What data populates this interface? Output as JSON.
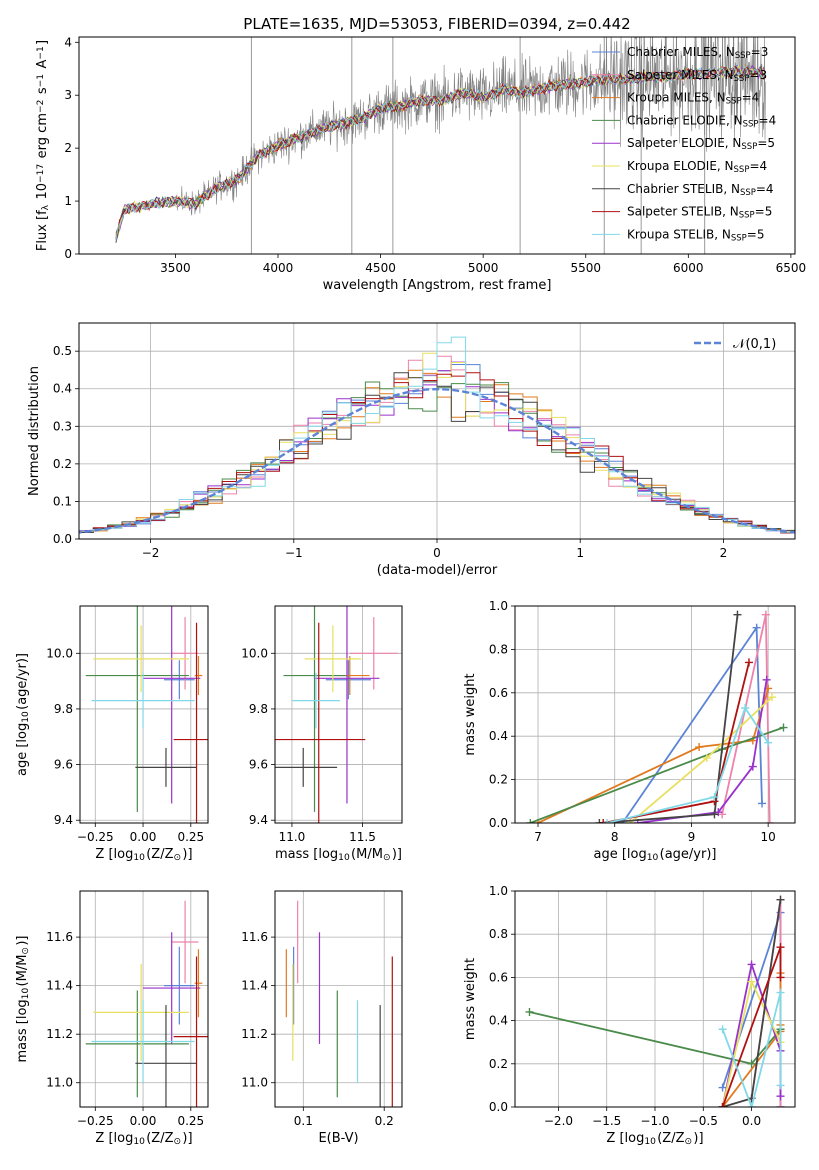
{
  "figure_title": "PLATE=1635, MJD=53053, FIBERID=0394, z=0.442",
  "colors": {
    "Chabrier MILES": "#5b84d6",
    "Salpeter MILES": "#ee82aa",
    "Kroupa MILES": "#e07a1f",
    "Chabrier ELODIE": "#4a8a4a",
    "Salpeter ELODIE": "#9932cc",
    "Kroupa ELODIE": "#e8e060",
    "Chabrier STELIB": "#444444",
    "Salpeter STELIB": "#b01010",
    "Kroupa STELIB": "#80d8e8",
    "gaussian": "#5b84d6",
    "data": "#808080"
  },
  "chart_data": [
    {
      "id": "spectrum",
      "type": "line",
      "xlabel": "wavelength [Angstrom, rest frame]",
      "ylabel": "Flux [f$_\\lambda$ 10$^{-17}$ erg cm$^{-2}$ s$^{-1}$ A$^{-1}$]",
      "xlim": [
        3030,
        6520
      ],
      "ylim": [
        0,
        4.1
      ],
      "xticks": [
        3500,
        4000,
        4500,
        5000,
        5500,
        6000,
        6500
      ],
      "yticks": [
        0,
        1,
        2,
        3,
        4
      ],
      "legend_placement": "upper-right",
      "legend": [
        {
          "sub": "Chabrier MILES",
          "n": "3"
        },
        {
          "sub": "Salpeter MILES",
          "n": "3"
        },
        {
          "sub": "Kroupa MILES",
          "n": "4"
        },
        {
          "sub": "Chabrier ELODIE",
          "n": "4"
        },
        {
          "sub": "Salpeter ELODIE",
          "n": "5"
        },
        {
          "sub": "Kroupa ELODIE",
          "n": "4"
        },
        {
          "sub": "Chabrier STELIB",
          "n": "4"
        },
        {
          "sub": "Salpeter STELIB",
          "n": "5"
        },
        {
          "sub": "Kroupa STELIB",
          "n": "5"
        }
      ],
      "legend_n_label": "N",
      "legend_n_sub": "SSP",
      "continuum": {
        "x": [
          3210,
          3250,
          3400,
          3480,
          3600,
          3700,
          3800,
          3900,
          4000,
          4100,
          4200,
          4300,
          4400,
          4500,
          4600,
          4700,
          4800,
          4900,
          5000,
          5100,
          5200,
          5300,
          5400,
          5500,
          5600,
          5700,
          5800,
          5900,
          6000,
          6100,
          6200,
          6300,
          6380
        ],
        "y": [
          0.3,
          0.85,
          0.95,
          1.0,
          0.95,
          1.25,
          1.4,
          1.85,
          2.05,
          2.2,
          2.35,
          2.45,
          2.55,
          2.75,
          2.8,
          2.9,
          2.9,
          3.05,
          2.95,
          3.1,
          3.05,
          3.15,
          3.2,
          3.25,
          3.3,
          3.3,
          3.35,
          3.35,
          3.4,
          3.4,
          3.45,
          3.45,
          3.4
        ]
      },
      "spikes": [
        3870,
        4360,
        4560,
        5180,
        5590,
        5770,
        6080
      ]
    },
    {
      "id": "residuals",
      "type": "histogram",
      "xlabel": "(data-model)/error",
      "ylabel": "Normed distribution",
      "xlim": [
        -2.5,
        2.5
      ],
      "ylim": [
        0,
        0.575
      ],
      "xticks": [
        -2,
        -1,
        0,
        1,
        2
      ],
      "yticks": [
        0.0,
        0.1,
        0.2,
        0.3,
        0.4,
        0.5
      ],
      "grid": true,
      "legend_label": "$\\mathcal{N}(0,1)$",
      "legend_placement": "upper-right",
      "bin_width": 0.1
    },
    {
      "id": "age_vs_Z",
      "type": "errorbar",
      "xlabel": "Z [log$_{10}$(Z/Z$_\\odot$)]",
      "ylabel": "age  [log$_{10}$(age/yr)]",
      "xlim": [
        -0.33,
        0.34
      ],
      "ylim": [
        9.39,
        10.17
      ],
      "xticks": [
        -0.25,
        0.0,
        0.25
      ],
      "xticklabels": [
        "−0.25",
        "0.00",
        "0.25"
      ],
      "yticks": [
        9.4,
        9.6,
        9.8,
        10.0
      ],
      "yticklabels": [
        "9.4",
        "9.6",
        "9.8",
        "10.0"
      ],
      "grid": true
    },
    {
      "id": "age_vs_mass",
      "type": "errorbar",
      "xlabel": "mass [log$_{10}$(M/M$_\\odot$)]",
      "ylabel": "",
      "xlim": [
        10.88,
        11.78
      ],
      "ylim": [
        9.39,
        10.17
      ],
      "xticks": [
        11.0,
        11.5
      ],
      "xticklabels": [
        "11.0",
        "11.5"
      ],
      "yticks": [
        9.4,
        9.6,
        9.8,
        10.0
      ],
      "yticklabels": [
        "9.4",
        "9.6",
        "9.8",
        "10.0"
      ],
      "grid": true
    },
    {
      "id": "weight_vs_age",
      "type": "line",
      "xlabel": "age  [log$_{10}$(age/yr)]",
      "ylabel": "mass weight",
      "xlim": [
        6.7,
        10.35
      ],
      "ylim": [
        0,
        1.0
      ],
      "xticks": [
        7,
        8,
        9,
        10
      ],
      "xticklabels": [
        "7",
        "8",
        "9",
        "10"
      ],
      "yticks": [
        0,
        0.2,
        0.4,
        0.6,
        0.8,
        1.0
      ],
      "yticklabels": [
        "0.0",
        "0.2",
        "0.4",
        "0.6",
        "0.8",
        "1.0"
      ],
      "grid": true
    },
    {
      "id": "mass_vs_Z",
      "type": "errorbar",
      "xlabel": "Z [log$_{10}$(Z/Z$_\\odot$)]",
      "ylabel": "mass [log$_{10}$(M/M$_\\odot$)]",
      "xlim": [
        -0.33,
        0.34
      ],
      "ylim": [
        10.9,
        11.79
      ],
      "xticks": [
        -0.25,
        0.0,
        0.25
      ],
      "xticklabels": [
        "−0.25",
        "0.00",
        "0.25"
      ],
      "yticks": [
        11.0,
        11.2,
        11.4,
        11.6
      ],
      "yticklabels": [
        "11.0",
        "11.2",
        "11.4",
        "11.6"
      ],
      "grid": true
    },
    {
      "id": "mass_vs_EBV",
      "type": "errorbar",
      "xlabel": "E(B-V)",
      "ylabel": "",
      "xlim": [
        0.065,
        0.222
      ],
      "ylim": [
        10.9,
        11.79
      ],
      "xticks": [
        0.1,
        0.2
      ],
      "xticklabels": [
        "0.1",
        "0.2"
      ],
      "yticks": [
        11.0,
        11.2,
        11.4,
        11.6
      ],
      "yticklabels": [
        "11.0",
        "11.2",
        "11.4",
        "11.6"
      ],
      "grid": true
    },
    {
      "id": "weight_vs_Z",
      "type": "line",
      "xlabel": "Z [log$_{10}$(Z/Z$_\\odot$)]",
      "ylabel": "mass weight",
      "xlim": [
        -2.45,
        0.45
      ],
      "ylim": [
        0,
        1.0
      ],
      "xticks": [
        -2.0,
        -1.5,
        -1.0,
        -0.5,
        0.0
      ],
      "xticklabels": [
        "−2.0",
        "−1.5",
        "−1.0",
        "−0.5",
        "0.0"
      ],
      "yticks": [
        0,
        0.2,
        0.4,
        0.6,
        0.8,
        1.0
      ],
      "yticklabels": [
        "0.0",
        "0.2",
        "0.4",
        "0.6",
        "0.8",
        "1.0"
      ],
      "grid": true
    }
  ],
  "models": [
    {
      "name": "Chabrier MILES",
      "age": 9.905,
      "age_err": 0.07,
      "Z": 0.19,
      "Z_err": 0.08,
      "mass": 11.4,
      "mass_err": 0.16,
      "ebv": 0.088,
      "ebv_err": 0.09,
      "ages": [
        8.1,
        9.85,
        9.92
      ],
      "weights": [
        0.0,
        0.9,
        0.09
      ],
      "Zs": [
        -0.3,
        0.3,
        0.3
      ],
      "zweights": [
        0.09,
        0.9,
        0.0
      ]
    },
    {
      "name": "Salpeter MILES",
      "age": 10.0,
      "age_err": 0.13,
      "Z": 0.22,
      "Z_err": 0.07,
      "mass": 11.58,
      "mass_err": 0.17,
      "ebv": 0.093,
      "ebv_err": 0.16,
      "ages": [
        9.4,
        9.97,
        10.02
      ],
      "weights": [
        0.04,
        0.96,
        0.0
      ],
      "Zs": [
        0.0,
        0.3,
        0.3
      ],
      "zweights": [
        0.04,
        0.96,
        0.0
      ]
    },
    {
      "name": "Kroupa MILES",
      "age": 9.92,
      "age_err": 0.07,
      "Z": 0.29,
      "Z_err": 0.02,
      "mass": 11.41,
      "mass_err": 0.14,
      "ebv": 0.079,
      "ebv_err": 0.15,
      "ages": [
        7.0,
        9.1,
        9.8,
        10.0
      ],
      "weights": [
        0.0,
        0.35,
        0.38,
        0.62
      ],
      "Zs": [
        -0.3,
        0.3,
        0.3,
        0.3
      ],
      "zweights": [
        0.0,
        0.35,
        0.38,
        0.62
      ]
    },
    {
      "name": "Chabrier ELODIE",
      "age": 9.92,
      "age_err": 0.49,
      "Z": -0.03,
      "Z_err": 0.27,
      "mass": 11.16,
      "mass_err": 0.22,
      "ebv": 0.142,
      "ebv_err": 0.26,
      "ages": [
        6.9,
        9.4,
        10.2
      ],
      "weights": [
        0.0,
        0.34,
        0.44
      ],
      "Zs": [
        -2.3,
        0.0,
        0.3
      ],
      "zweights": [
        0.44,
        0.2,
        0.36
      ]
    },
    {
      "name": "Salpeter ELODIE",
      "age": 9.91,
      "age_err": 0.45,
      "Z": 0.15,
      "Z_err": 0.15,
      "mass": 11.39,
      "mass_err": 0.23,
      "ebv": 0.12,
      "ebv_err": 0.23,
      "ages": [
        8.3,
        9.35,
        9.8,
        9.98
      ],
      "weights": [
        0.0,
        0.05,
        0.26,
        0.66
      ],
      "Zs": [
        -0.3,
        0.0,
        0.3,
        0.3
      ],
      "zweights": [
        0.0,
        0.66,
        0.26,
        0.05
      ]
    },
    {
      "name": "Kroupa ELODIE",
      "age": 9.98,
      "age_err": 0.12,
      "Z": -0.01,
      "Z_err": 0.25,
      "mass": 11.29,
      "mass_err": 0.2,
      "ebv": 0.087,
      "ebv_err": 0.1,
      "ages": [
        8.2,
        9.2,
        10.05
      ],
      "weights": [
        0.0,
        0.3,
        0.58
      ],
      "Zs": [
        -0.3,
        0.0,
        0.3
      ],
      "zweights": [
        0.0,
        0.58,
        0.3
      ]
    },
    {
      "name": "Chabrier STELIB",
      "age": 9.59,
      "age_err": 0.07,
      "Z": 0.12,
      "Z_err": 0.16,
      "mass": 11.08,
      "mass_err": 0.24,
      "ebv": 0.195,
      "ebv_err": 0.32,
      "ages": [
        7.8,
        9.3,
        9.6
      ],
      "weights": [
        0.0,
        0.04,
        0.96
      ],
      "Zs": [
        -0.3,
        0.0,
        0.3
      ],
      "zweights": [
        0.0,
        0.04,
        0.96
      ]
    },
    {
      "name": "Salpeter STELIB",
      "age": 9.69,
      "age_err": 0.42,
      "Z": 0.28,
      "Z_err": 0.12,
      "mass": 11.19,
      "mass_err": 0.33,
      "ebv": 0.21,
      "ebv_err": 0.44,
      "ages": [
        7.85,
        9.3,
        9.75
      ],
      "weights": [
        0.0,
        0.1,
        0.74
      ],
      "Zs": [
        -0.3,
        0.3,
        0.3
      ],
      "zweights": [
        0.0,
        0.74,
        0.6
      ]
    },
    {
      "name": "Kroupa STELIB",
      "age": 9.83,
      "age_err": 0.1,
      "Z": 0.0,
      "Z_err": 0.27,
      "mass": 11.17,
      "mass_err": 0.17,
      "ebv": 0.167,
      "ebv_err": 0.16,
      "ages": [
        7.9,
        9.3,
        9.7,
        10.0
      ],
      "weights": [
        0.0,
        0.12,
        0.53,
        0.37
      ],
      "Zs": [
        -0.3,
        0.0,
        0.3,
        0.3
      ],
      "zweights": [
        0.36,
        0.0,
        0.53,
        0.1
      ]
    }
  ]
}
